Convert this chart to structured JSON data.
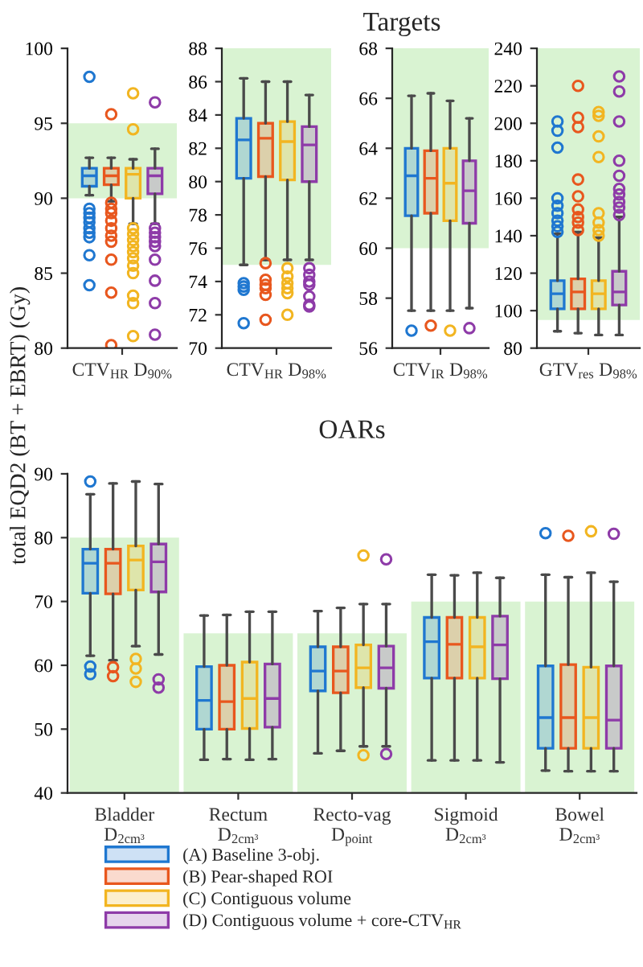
{
  "chart_data": [
    {
      "type": "box",
      "categories": [
        "CTV$_{HR}$ D$_{90%}$"
      ],
      "ylim": [
        80,
        100
      ],
      "yticks": [
        80,
        85,
        90,
        95,
        100
      ],
      "bands": [
        {
          "axis": "y",
          "from": 90,
          "to": 95,
          "color": "#d9f3d2"
        }
      ],
      "series": [
        {
          "color": "#1f77d0",
          "boxes": [
            {
              "low": 90.2,
              "q1": 90.8,
              "median": 91.5,
              "q3": 92.0,
              "high": 92.7,
              "outliers": [
                98.1,
                89.3,
                89.0,
                88.7,
                88.4,
                88.0,
                87.7,
                87.4,
                86.2,
                84.2
              ]
            }
          ]
        },
        {
          "color": "#e8571e",
          "boxes": [
            {
              "low": 89.8,
              "q1": 90.9,
              "median": 91.5,
              "q3": 92.0,
              "high": 92.7,
              "outliers": [
                95.6,
                89.7,
                89.3,
                89.0,
                88.5,
                88.0,
                87.5,
                87.1,
                85.9,
                83.7,
                80.2
              ]
            }
          ]
        },
        {
          "color": "#f2b521",
          "boxes": [
            {
              "low": 88.3,
              "q1": 90.0,
              "median": 91.6,
              "q3": 92.0,
              "high": 92.6,
              "outliers": [
                97.0,
                94.6,
                88.0,
                87.6,
                87.2,
                86.8,
                86.4,
                86.0,
                85.5,
                85.0,
                83.5,
                83.0,
                80.8
              ]
            }
          ]
        },
        {
          "color": "#8e3ba8",
          "boxes": [
            {
              "low": 88.3,
              "q1": 90.3,
              "median": 91.5,
              "q3": 92.0,
              "high": 93.3,
              "outliers": [
                96.4,
                88.0,
                87.7,
                87.4,
                87.1,
                86.8,
                85.9,
                84.5,
                83.0,
                80.9
              ]
            }
          ]
        }
      ]
    },
    {
      "type": "box",
      "categories": [
        "CTV$_{HR}$ D$_{98%}$"
      ],
      "ylim": [
        70,
        88
      ],
      "yticks": [
        70,
        72,
        74,
        76,
        78,
        80,
        82,
        84,
        86,
        88
      ],
      "bands": [
        {
          "axis": "y",
          "from": 75,
          "to": 88,
          "color": "#d9f3d2"
        }
      ],
      "series": [
        {
          "color": "#1f77d0",
          "boxes": [
            {
              "low": 75.0,
              "q1": 80.2,
              "median": 82.5,
              "q3": 83.8,
              "high": 86.2,
              "outliers": [
                73.9,
                73.7,
                73.5,
                71.5
              ]
            }
          ]
        },
        {
          "color": "#e8571e",
          "boxes": [
            {
              "low": 75.3,
              "q1": 80.3,
              "median": 82.6,
              "q3": 83.5,
              "high": 86.0,
              "outliers": [
                75.1,
                74.1,
                73.8,
                73.6,
                73.2,
                71.7
              ]
            }
          ]
        },
        {
          "color": "#f2b521",
          "boxes": [
            {
              "low": 75.3,
              "q1": 80.1,
              "median": 82.4,
              "q3": 83.6,
              "high": 86.0,
              "outliers": [
                74.8,
                74.3,
                73.9,
                73.6,
                73.3,
                72.0
              ]
            }
          ]
        },
        {
          "color": "#8e3ba8",
          "boxes": [
            {
              "low": 75.3,
              "q1": 80.0,
              "median": 82.2,
              "q3": 83.3,
              "high": 85.2,
              "outliers": [
                74.8,
                74.4,
                74.0,
                73.8,
                73.1,
                72.6,
                72.5
              ]
            }
          ]
        }
      ]
    },
    {
      "type": "box",
      "title": "Targets",
      "categories": [
        "CTV$_{IR}$ D$_{98%}$"
      ],
      "ylim": [
        56,
        68
      ],
      "yticks": [
        56,
        58,
        60,
        62,
        64,
        66,
        68
      ],
      "bands": [
        {
          "axis": "y",
          "from": 60,
          "to": 68,
          "color": "#d9f3d2"
        }
      ],
      "series": [
        {
          "color": "#1f77d0",
          "boxes": [
            {
              "low": 57.5,
              "q1": 61.3,
              "median": 62.9,
              "q3": 64.0,
              "high": 66.1,
              "outliers": [
                56.7
              ]
            }
          ]
        },
        {
          "color": "#e8571e",
          "boxes": [
            {
              "low": 57.5,
              "q1": 61.4,
              "median": 62.8,
              "q3": 63.9,
              "high": 66.2,
              "outliers": [
                56.9
              ]
            }
          ]
        },
        {
          "color": "#f2b521",
          "boxes": [
            {
              "low": 57.5,
              "q1": 61.1,
              "median": 62.6,
              "q3": 64.0,
              "high": 65.9,
              "outliers": [
                56.7
              ]
            }
          ]
        },
        {
          "color": "#8e3ba8",
          "boxes": [
            {
              "low": 57.6,
              "q1": 61.0,
              "median": 62.3,
              "q3": 63.5,
              "high": 65.2,
              "outliers": [
                56.8
              ]
            }
          ]
        }
      ]
    },
    {
      "type": "box",
      "categories": [
        "GTV$_{res}$ D$_{98%}$"
      ],
      "ylim": [
        80,
        240
      ],
      "yticks": [
        80,
        100,
        120,
        140,
        160,
        180,
        200,
        220,
        240
      ],
      "bands": [
        {
          "axis": "y",
          "from": 95,
          "to": 240,
          "color": "#d9f3d2"
        }
      ],
      "series": [
        {
          "color": "#1f77d0",
          "boxes": [
            {
              "low": 89,
              "q1": 101,
              "median": 109,
              "q3": 116,
              "high": 141,
              "outliers": [
                142,
                145,
                148,
                152,
                156,
                160,
                187,
                196,
                201
              ]
            }
          ]
        },
        {
          "color": "#e8571e",
          "boxes": [
            {
              "low": 88,
              "q1": 101,
              "median": 110,
              "q3": 117,
              "high": 142,
              "outliers": [
                143,
                147,
                150,
                154,
                161,
                170,
                198,
                203,
                220
              ]
            }
          ]
        },
        {
          "color": "#f2b521",
          "boxes": [
            {
              "low": 87,
              "q1": 101,
              "median": 109,
              "q3": 116,
              "high": 139,
              "outliers": [
                140,
                143,
                147,
                152,
                182,
                193,
                204,
                206
              ]
            }
          ]
        },
        {
          "color": "#8e3ba8",
          "boxes": [
            {
              "low": 87,
              "q1": 103,
              "median": 110,
              "q3": 121,
              "high": 150,
              "outliers": [
                151,
                155,
                158,
                162,
                165,
                172,
                180,
                201,
                217,
                225
              ]
            }
          ]
        }
      ]
    },
    {
      "type": "box",
      "title": "OARs",
      "ylabel": "total EQD2 (BT + EBRT) (Gy)",
      "legend": "bottom",
      "categories": [
        "Bladder\nD$_{2cm³}$",
        "Rectum\nD$_{2cm³}$",
        "Recto-vag\nD$_{point}$",
        "Sigmoid\nD$_{2cm³}$",
        "Bowel\nD$_{2cm³}$"
      ],
      "ylim": [
        40,
        90
      ],
      "yticks": [
        40,
        50,
        60,
        70,
        80,
        90
      ],
      "series": [
        {
          "type": "bar",
          "color": "#d9f3d2",
          "values": [
            80,
            65,
            65,
            70,
            70
          ]
        },
        {
          "type": "box",
          "name": "(A) Baseline 3-obj.",
          "color": "#1f77d0",
          "boxes": [
            {
              "low": 61.5,
              "q1": 71.3,
              "median": 76.0,
              "q3": 78.2,
              "high": 86.8,
              "outliers": [
                88.8,
                59.8,
                58.6
              ]
            },
            {
              "low": 45.2,
              "q1": 50.0,
              "median": 54.5,
              "q3": 59.8,
              "high": 67.8
            },
            {
              "low": 46.2,
              "q1": 56.0,
              "median": 59.1,
              "q3": 62.9,
              "high": 68.5
            },
            {
              "low": 45.1,
              "q1": 58.0,
              "median": 63.7,
              "q3": 67.5,
              "high": 74.2
            },
            {
              "low": 43.5,
              "q1": 47.0,
              "median": 51.8,
              "q3": 59.9,
              "high": 74.2,
              "outliers": [
                80.7
              ]
            }
          ]
        },
        {
          "type": "box",
          "name": "(B) Pear-shaped ROI",
          "color": "#e8571e",
          "boxes": [
            {
              "low": 60.8,
              "q1": 71.2,
              "median": 76.0,
              "q3": 78.2,
              "high": 88.5,
              "outliers": [
                59.7,
                58.3
              ]
            },
            {
              "low": 45.3,
              "q1": 50.0,
              "median": 54.3,
              "q3": 60.0,
              "high": 67.9
            },
            {
              "low": 46.6,
              "q1": 55.7,
              "median": 59.1,
              "q3": 62.9,
              "high": 69.0
            },
            {
              "low": 45.1,
              "q1": 58.0,
              "median": 63.3,
              "q3": 67.5,
              "high": 74.1
            },
            {
              "low": 43.4,
              "q1": 47.0,
              "median": 51.8,
              "q3": 60.1,
              "high": 73.8,
              "outliers": [
                80.3
              ]
            }
          ]
        },
        {
          "type": "box",
          "name": "(C) Contiguous volume",
          "color": "#f2b521",
          "boxes": [
            {
              "low": 63.0,
              "q1": 71.8,
              "median": 76.5,
              "q3": 78.7,
              "high": 88.8,
              "outliers": [
                61.0,
                59.5,
                57.4
              ]
            },
            {
              "low": 45.2,
              "q1": 50.1,
              "median": 54.8,
              "q3": 60.5,
              "high": 68.4
            },
            {
              "low": 47.3,
              "q1": 56.5,
              "median": 59.6,
              "q3": 63.2,
              "high": 69.6,
              "outliers": [
                77.2,
                45.9
              ]
            },
            {
              "low": 45.1,
              "q1": 58.0,
              "median": 62.9,
              "q3": 67.5,
              "high": 74.5
            },
            {
              "low": 43.4,
              "q1": 47.0,
              "median": 51.8,
              "q3": 59.7,
              "high": 74.5,
              "outliers": [
                81.0
              ]
            }
          ]
        },
        {
          "type": "box",
          "name": "(D) Contiguous volume + core-CTV$_{HR}$",
          "color": "#8e3ba8",
          "boxes": [
            {
              "low": 61.7,
              "q1": 71.5,
              "median": 76.2,
              "q3": 79.0,
              "high": 88.4,
              "outliers": [
                57.8,
                56.5
              ]
            },
            {
              "low": 45.3,
              "q1": 50.3,
              "median": 54.8,
              "q3": 60.2,
              "high": 68.4
            },
            {
              "low": 47.3,
              "q1": 56.4,
              "median": 59.6,
              "q3": 63.0,
              "high": 69.6,
              "outliers": [
                76.6,
                46.1
              ]
            },
            {
              "low": 44.8,
              "q1": 57.9,
              "median": 63.2,
              "q3": 67.7,
              "high": 73.7
            },
            {
              "low": 43.4,
              "q1": 47.0,
              "median": 51.4,
              "q3": 59.9,
              "high": 73.1,
              "outliers": [
                80.6
              ]
            }
          ]
        }
      ]
    }
  ]
}
